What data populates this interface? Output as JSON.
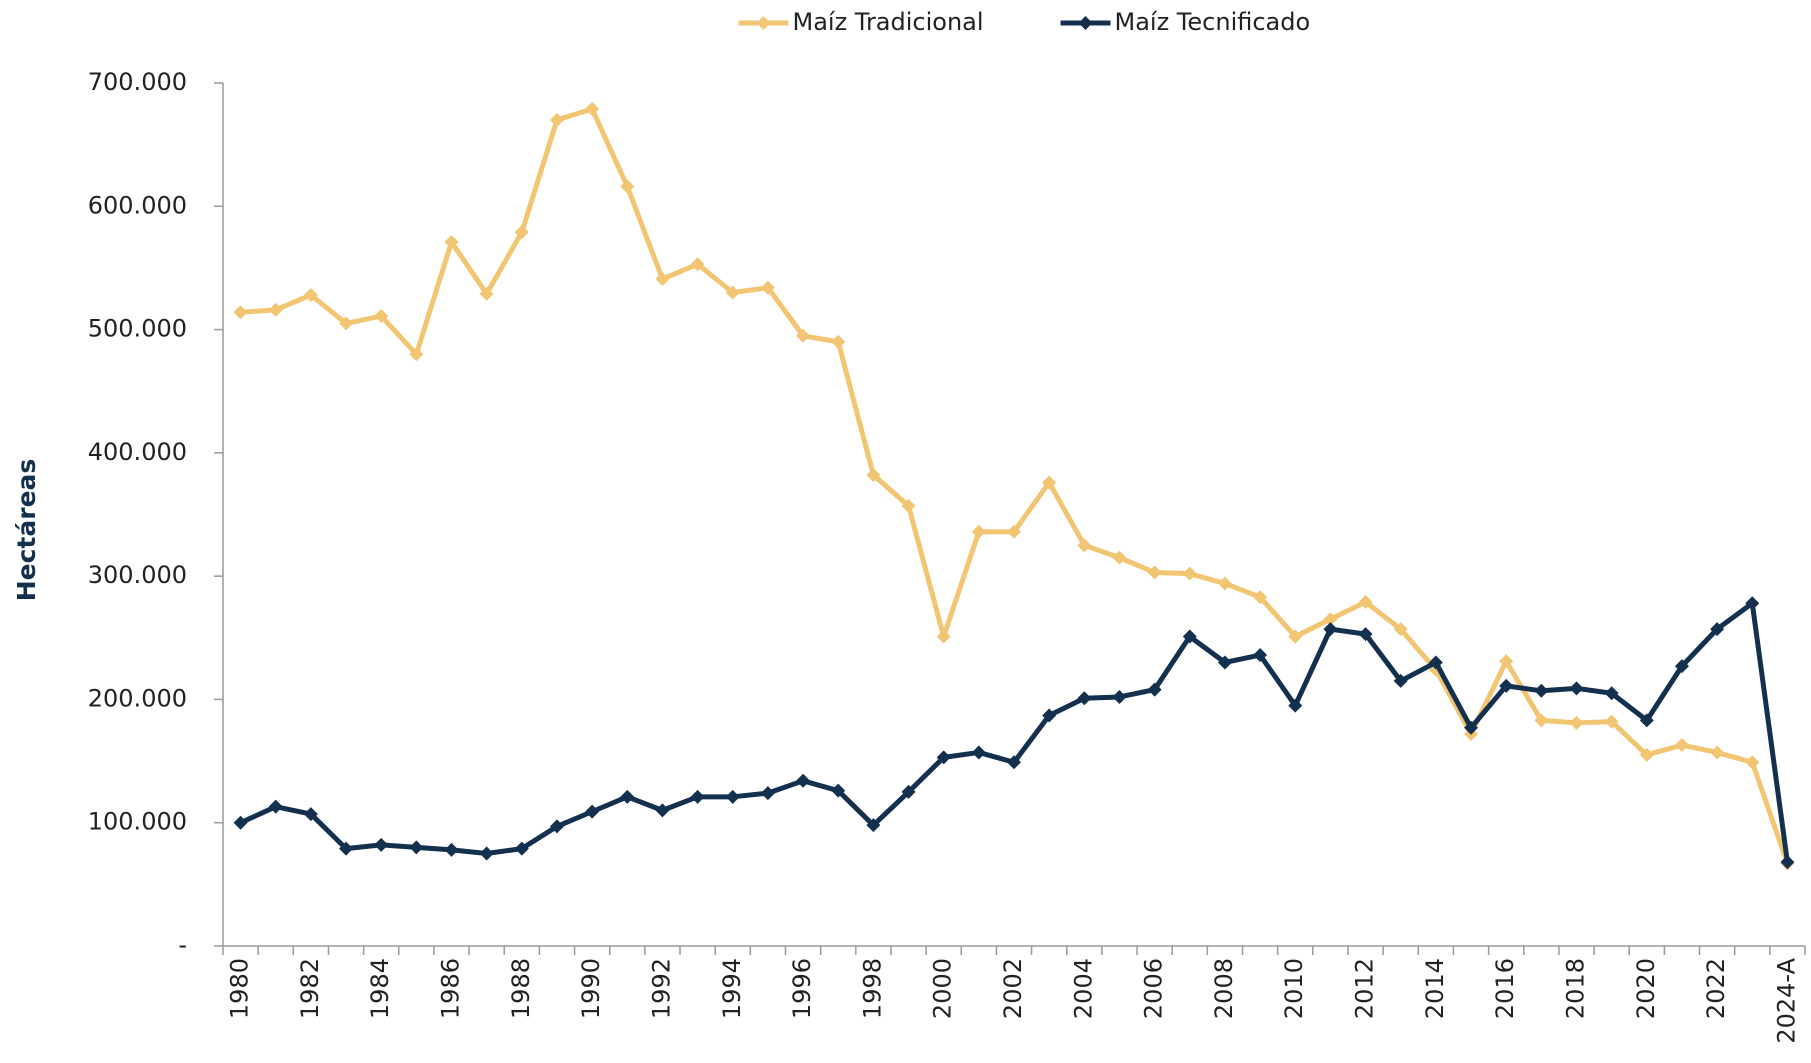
{
  "chart_data": {
    "type": "line",
    "y_label": "Hectáreas",
    "categories": [
      "1980",
      null,
      "1982",
      null,
      "1984",
      null,
      "1986",
      null,
      "1988",
      null,
      "1990",
      null,
      "1992",
      null,
      "1994",
      null,
      "1996",
      null,
      "1998",
      null,
      "2000",
      null,
      "2002",
      null,
      "2004",
      null,
      "2006",
      null,
      "2008",
      null,
      "2010",
      null,
      "2012",
      null,
      "2014",
      null,
      "2016",
      null,
      "2018",
      null,
      "2020",
      null,
      "2022",
      null,
      "2024-A"
    ],
    "series": [
      {
        "name": "Maíz Tradicional",
        "color": "#f2c572",
        "values": [
          514000,
          516000,
          528000,
          505000,
          511000,
          480000,
          571000,
          529000,
          579000,
          670000,
          679000,
          616000,
          541000,
          553000,
          530000,
          534000,
          495000,
          490000,
          382000,
          357000,
          251000,
          336000,
          336000,
          376000,
          325000,
          315000,
          303000,
          302000,
          294000,
          283000,
          251000,
          265000,
          279000,
          257000,
          224000,
          172000,
          231000,
          183000,
          181000,
          182000,
          155000,
          163000,
          157000,
          149000,
          67000
        ]
      },
      {
        "name": "Maíz Tecnificado",
        "color": "#14304f",
        "values": [
          100000,
          113000,
          107000,
          79000,
          82000,
          80000,
          78000,
          75000,
          79000,
          97000,
          109000,
          121000,
          110000,
          121000,
          121000,
          124000,
          134000,
          126000,
          98000,
          125000,
          153000,
          157000,
          149000,
          187000,
          201000,
          202000,
          208000,
          251000,
          230000,
          236000,
          195000,
          257000,
          253000,
          215000,
          230000,
          177000,
          211000,
          207000,
          209000,
          205000,
          183000,
          227000,
          257000,
          278000,
          68000
        ]
      }
    ],
    "ylim": [
      0,
      700000
    ],
    "yticks": [
      {
        "value": 0,
        "label": "-"
      },
      {
        "value": 100000,
        "label": "100.000"
      },
      {
        "value": 200000,
        "label": "200.000"
      },
      {
        "value": 300000,
        "label": "300.000"
      },
      {
        "value": 400000,
        "label": "400.000"
      },
      {
        "value": 500000,
        "label": "500.000"
      },
      {
        "value": 600000,
        "label": "600.000"
      },
      {
        "value": 700000,
        "label": "700.000"
      }
    ],
    "grid": false,
    "legend": "top"
  }
}
